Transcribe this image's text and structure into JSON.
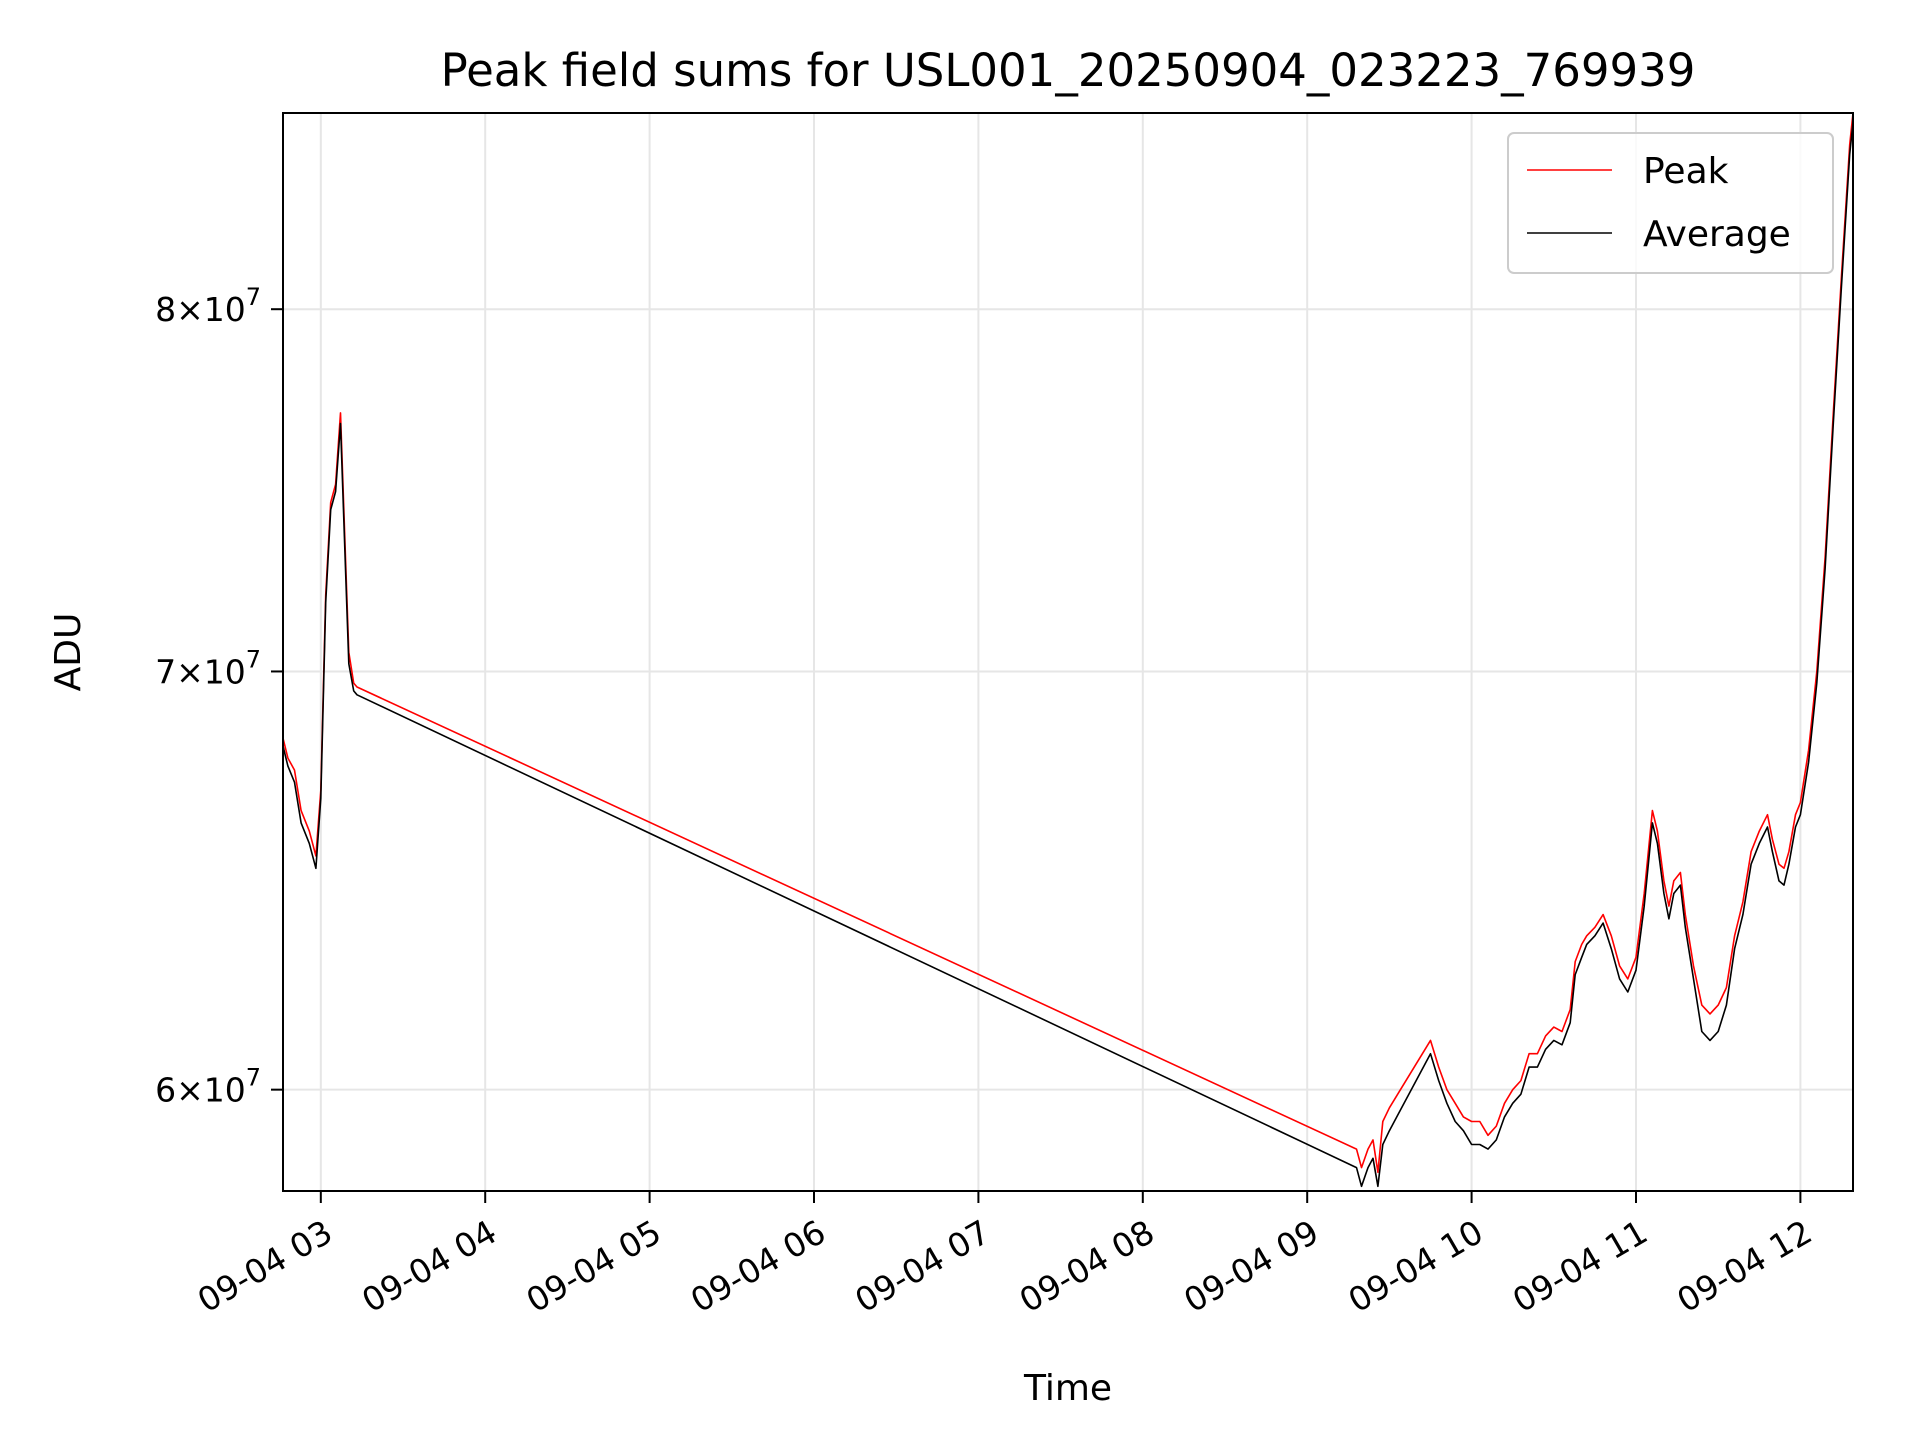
{
  "chart_data": {
    "type": "line",
    "title": "Peak field sums for USL001_20250904_023223_769939",
    "xlabel": "Time",
    "ylabel": "ADU",
    "x_axis": {
      "unit": "hour of 2025-09-04",
      "range": [
        2.77,
        12.32
      ],
      "ticks": [
        3,
        4,
        5,
        6,
        7,
        8,
        9,
        10,
        11,
        12
      ],
      "tick_labels": [
        "09-04 03",
        "09-04 04",
        "09-04 05",
        "09-04 06",
        "09-04 07",
        "09-04 08",
        "09-04 09",
        "09-04 10",
        "09-04 11",
        "09-04 12"
      ]
    },
    "y_axis": {
      "scale": "log",
      "range": [
        57800000,
        86000000
      ],
      "ticks": [
        60000000,
        70000000,
        80000000
      ],
      "tick_labels": [
        {
          "mantissa": "6",
          "base": "10",
          "exp": "7"
        },
        {
          "mantissa": "7",
          "base": "10",
          "exp": "7"
        },
        {
          "mantissa": "8",
          "base": "10",
          "exp": "7"
        }
      ],
      "times_sign": "×"
    },
    "grid": true,
    "legend": {
      "position": "top-right",
      "entries": [
        {
          "label": "Peak",
          "color": "#ff0000"
        },
        {
          "label": "Average",
          "color": "#000000"
        }
      ]
    },
    "series": [
      {
        "name": "Peak",
        "color": "#ff0000",
        "x": [
          2.77,
          2.8,
          2.84,
          2.88,
          2.93,
          2.97,
          3.0,
          3.03,
          3.06,
          3.09,
          3.12,
          3.15,
          3.17,
          3.2,
          3.22,
          9.3,
          9.33,
          9.37,
          9.4,
          9.43,
          9.46,
          9.5,
          9.75,
          9.8,
          9.85,
          9.9,
          9.95,
          10.0,
          10.05,
          10.1,
          10.15,
          10.2,
          10.25,
          10.3,
          10.35,
          10.4,
          10.45,
          10.5,
          10.55,
          10.6,
          10.63,
          10.67,
          10.7,
          10.75,
          10.8,
          10.85,
          10.9,
          10.95,
          11.0,
          11.05,
          11.1,
          11.13,
          11.17,
          11.2,
          11.23,
          11.27,
          11.3,
          11.35,
          11.4,
          11.45,
          11.5,
          11.55,
          11.6,
          11.65,
          11.7,
          11.75,
          11.8,
          11.83,
          11.87,
          11.9,
          11.93,
          11.97,
          12.0,
          12.05,
          12.1,
          12.15,
          12.2,
          12.25,
          12.3,
          12.32
        ],
        "values": [
          68300000,
          67800000,
          67500000,
          66500000,
          66000000,
          65400000,
          67000000,
          72000000,
          74500000,
          75000000,
          77000000,
          73000000,
          70500000,
          69700000,
          69600000,
          58700000,
          58300000,
          58700000,
          58900000,
          58200000,
          59300000,
          59600000,
          61100000,
          60500000,
          60000000,
          59700000,
          59400000,
          59300000,
          59300000,
          59000000,
          59200000,
          59700000,
          60000000,
          60200000,
          60800000,
          60800000,
          61200000,
          61400000,
          61300000,
          61800000,
          62900000,
          63300000,
          63500000,
          63700000,
          64000000,
          63500000,
          62800000,
          62500000,
          63000000,
          64500000,
          66500000,
          66000000,
          64800000,
          64200000,
          64800000,
          65000000,
          64000000,
          62800000,
          61900000,
          61700000,
          61900000,
          62300000,
          63500000,
          64300000,
          65500000,
          66000000,
          66400000,
          65800000,
          65200000,
          65100000,
          65500000,
          66400000,
          66700000,
          68000000,
          70000000,
          73000000,
          77000000,
          81000000,
          85000000,
          86000000
        ]
      },
      {
        "name": "Average",
        "color": "#000000",
        "x": [
          2.77,
          2.8,
          2.84,
          2.88,
          2.93,
          2.97,
          3.0,
          3.03,
          3.06,
          3.09,
          3.12,
          3.15,
          3.17,
          3.2,
          3.22,
          9.3,
          9.33,
          9.37,
          9.4,
          9.43,
          9.46,
          9.5,
          9.75,
          9.8,
          9.85,
          9.9,
          9.95,
          10.0,
          10.05,
          10.1,
          10.15,
          10.2,
          10.25,
          10.3,
          10.35,
          10.4,
          10.45,
          10.5,
          10.55,
          10.6,
          10.63,
          10.67,
          10.7,
          10.75,
          10.8,
          10.85,
          10.9,
          10.95,
          11.0,
          11.05,
          11.1,
          11.13,
          11.17,
          11.2,
          11.23,
          11.27,
          11.3,
          11.35,
          11.4,
          11.45,
          11.5,
          11.55,
          11.6,
          11.65,
          11.7,
          11.75,
          11.8,
          11.83,
          11.87,
          11.9,
          11.93,
          11.97,
          12.0,
          12.05,
          12.1,
          12.15,
          12.2,
          12.25,
          12.3,
          12.32
        ],
        "values": [
          68100000,
          67600000,
          67200000,
          66200000,
          65700000,
          65100000,
          66800000,
          71800000,
          74300000,
          74800000,
          76700000,
          72700000,
          70200000,
          69500000,
          69400000,
          58300000,
          57900000,
          58300000,
          58500000,
          57900000,
          58800000,
          59100000,
          60800000,
          60200000,
          59700000,
          59300000,
          59100000,
          58800000,
          58800000,
          58700000,
          58900000,
          59400000,
          59700000,
          59900000,
          60500000,
          60500000,
          60900000,
          61100000,
          61000000,
          61500000,
          62600000,
          63000000,
          63300000,
          63500000,
          63800000,
          63200000,
          62500000,
          62200000,
          62700000,
          64200000,
          66200000,
          65700000,
          64500000,
          63900000,
          64500000,
          64700000,
          63700000,
          62500000,
          61300000,
          61100000,
          61300000,
          61900000,
          63200000,
          64000000,
          65200000,
          65700000,
          66100000,
          65500000,
          64800000,
          64700000,
          65200000,
          66100000,
          66400000,
          67700000,
          69700000,
          72700000,
          76700000,
          80700000,
          84700000,
          85700000
        ]
      }
    ]
  }
}
